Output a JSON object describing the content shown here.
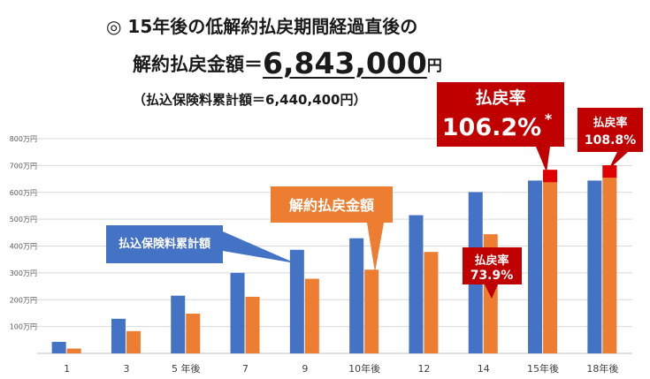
{
  "header": {
    "line1": "◎ 15年後の低解約払戻期間経過直後の",
    "line2_prefix": "解約払戻金額＝",
    "line2_amount": "6,843,000",
    "line2_unit": "円",
    "line3": "（払込保険料累計額＝6,440,400円）"
  },
  "callouts": {
    "premium": "払込保険料累計額",
    "surrender": "解約払戻金額",
    "rate_label": "払戻率",
    "rate_14": "73.9%",
    "rate_15": "106.2%",
    "rate_15_mark": "*",
    "rate_18": "108.8%"
  },
  "colors": {
    "premium": "#4472c4",
    "surrender": "#ed7d31",
    "callout_red": "#c00000",
    "marker_red": "#e00000",
    "grid": "#d9d9d9"
  },
  "chart_data": {
    "type": "bar",
    "categories": [
      "1",
      "3",
      "5 年後",
      "7",
      "9",
      "10年後",
      "12",
      "14",
      "15年後",
      "18年後"
    ],
    "series": [
      {
        "name": "払込保険料累計額",
        "values": [
          43,
          129,
          215,
          300,
          386,
          429,
          515,
          601,
          644,
          644
        ]
      },
      {
        "name": "解約払戻金額",
        "values": [
          18,
          83,
          148,
          211,
          278,
          312,
          378,
          444,
          684,
          701
        ]
      }
    ],
    "ylim": [
      0,
      800
    ],
    "yticks": [
      100,
      200,
      300,
      400,
      500,
      600,
      700,
      800
    ],
    "ytick_labels": [
      "100万円",
      "200万円",
      "300万円",
      "400万円",
      "500万円",
      "600万円",
      "700万円",
      "800万円"
    ],
    "grid": true
  }
}
